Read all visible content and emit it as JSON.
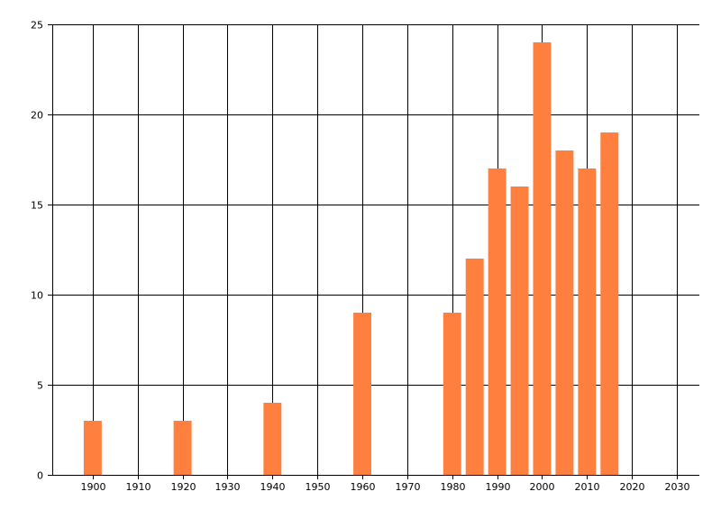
{
  "chart_data": {
    "type": "bar",
    "title": "",
    "xlabel": "",
    "ylabel": "",
    "x": [
      1900,
      1920,
      1940,
      1960,
      1980,
      1985,
      1990,
      1995,
      2000,
      2005,
      2010,
      2015
    ],
    "values": [
      3,
      3,
      4,
      9,
      9,
      12,
      17,
      16,
      24,
      18,
      17,
      19
    ],
    "xlim": [
      1891,
      2035
    ],
    "ylim": [
      0,
      25
    ],
    "x_ticks": [
      1900,
      1910,
      1920,
      1930,
      1940,
      1950,
      1960,
      1970,
      1980,
      1990,
      2000,
      2010,
      2020,
      2030
    ],
    "y_ticks": [
      0,
      5,
      10,
      15,
      20,
      25
    ],
    "grid": true,
    "legend": "none",
    "bar_color": "#FF7F3F",
    "grid_color": "#000000"
  }
}
